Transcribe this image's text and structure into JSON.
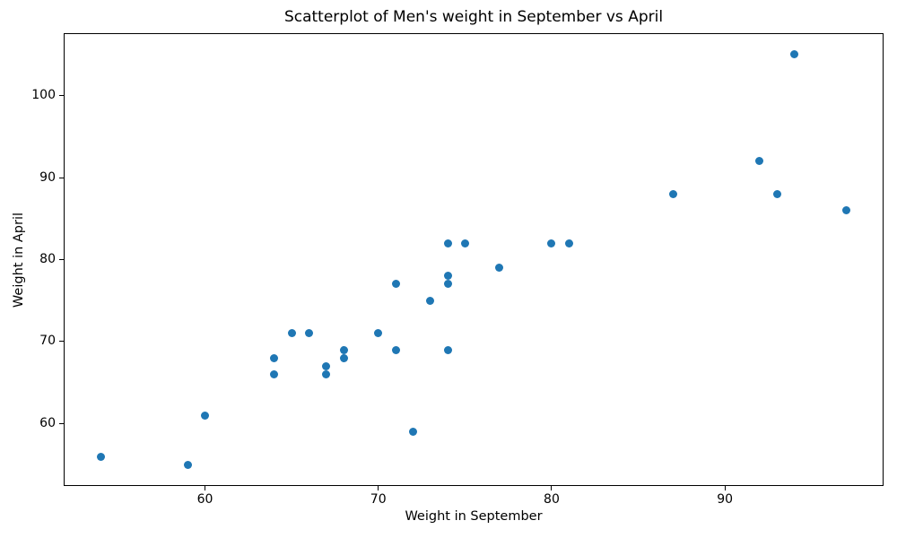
{
  "chart_data": {
    "type": "scatter",
    "title": "Scatterplot of Men's weight in September vs April",
    "xlabel": "Weight in September",
    "ylabel": "Weight in April",
    "x": [
      54,
      59,
      60,
      64,
      64,
      65,
      66,
      67,
      67,
      68,
      68,
      70,
      71,
      71,
      72,
      73,
      74,
      74,
      74,
      74,
      75,
      77,
      80,
      81,
      87,
      92,
      93,
      94,
      97
    ],
    "y": [
      56,
      55,
      61,
      66,
      68,
      71,
      71,
      66,
      67,
      68,
      69,
      71,
      69,
      77,
      59,
      75,
      69,
      77,
      78,
      82,
      82,
      79,
      82,
      82,
      88,
      92,
      88,
      105,
      86
    ],
    "xlim": [
      51.85,
      99.15
    ],
    "ylim": [
      52.4,
      107.6
    ],
    "xticks": [
      60,
      70,
      80,
      90
    ],
    "yticks": [
      60,
      70,
      80,
      90,
      100
    ],
    "marker_color": "#1f77b4",
    "grid": false
  }
}
